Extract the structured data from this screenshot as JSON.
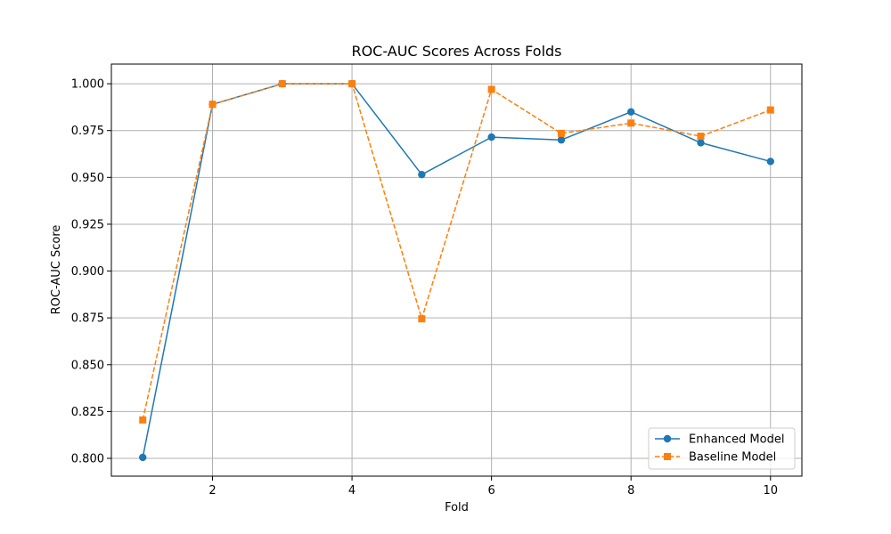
{
  "chart_data": {
    "type": "line",
    "title": "ROC-AUC Scores Across Folds",
    "xlabel": "Fold",
    "ylabel": "ROC-AUC Score",
    "xlim": [
      0.55,
      10.45
    ],
    "ylim": [
      0.7905,
      1.0105
    ],
    "xticks": [
      2,
      4,
      6,
      8,
      10
    ],
    "yticks": [
      0.8,
      0.825,
      0.85,
      0.875,
      0.9,
      0.925,
      0.95,
      0.975,
      1.0
    ],
    "ytick_labels": [
      "0.800",
      "0.825",
      "0.850",
      "0.875",
      "0.900",
      "0.925",
      "0.950",
      "0.975",
      "1.000"
    ],
    "grid": true,
    "legend_position": "lower-right",
    "x": [
      1,
      2,
      3,
      4,
      5,
      6,
      7,
      8,
      9,
      10
    ],
    "series": [
      {
        "name": "Enhanced Model",
        "values": [
          0.8005,
          0.989,
          1.0,
          1.0,
          0.9515,
          0.9715,
          0.97,
          0.985,
          0.9685,
          0.9585
        ],
        "color": "#1f77b4",
        "linestyle": "solid",
        "marker": "circle"
      },
      {
        "name": "Baseline Model",
        "values": [
          0.8205,
          0.989,
          1.0,
          1.0,
          0.8745,
          0.997,
          0.9735,
          0.979,
          0.972,
          0.986
        ],
        "color": "#ff7f0e",
        "linestyle": "dashed",
        "marker": "square"
      }
    ]
  }
}
